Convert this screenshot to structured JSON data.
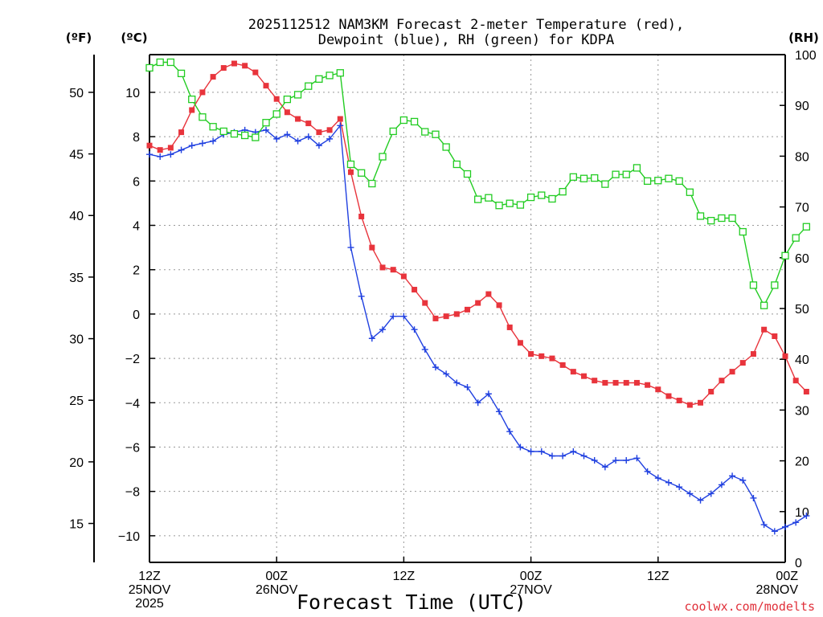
{
  "chart_data": {
    "type": "line",
    "title": [
      "2025112512 NAM3KM Forecast 2-meter Temperature (red),",
      "Dewpoint (blue), RH (green) for KDPA"
    ],
    "xlabel": "Forecast Time (UTC)",
    "credit": "coolwx.com/modelts",
    "unit_f": "(ºF)",
    "unit_c": "(ºC)",
    "unit_rh": "(RH)",
    "x_unit": "forecast hour",
    "xlim": [
      0,
      60
    ],
    "ylim_c": [
      -11.2,
      11.7
    ],
    "ylim_rh": [
      0,
      100
    ],
    "x_ticks": [
      {
        "hour": 0,
        "lines": [
          "12Z",
          "25NOV",
          "2025"
        ]
      },
      {
        "hour": 12,
        "lines": [
          "00Z",
          "26NOV"
        ]
      },
      {
        "hour": 24,
        "lines": [
          "12Z"
        ]
      },
      {
        "hour": 36,
        "lines": [
          "00Z",
          "27NOV"
        ]
      },
      {
        "hour": 48,
        "lines": [
          "12Z"
        ]
      },
      {
        "hour": 60,
        "lines": [
          "00Z",
          "28NOV"
        ]
      }
    ],
    "y_ticks_c": [
      10,
      8,
      6,
      4,
      2,
      0,
      -2,
      -4,
      -6,
      -8,
      -10
    ],
    "y_tick_labels_c": [
      "10",
      "8",
      "6",
      "4",
      "2",
      "0",
      "−2",
      "−4",
      "−6",
      "−8",
      "−10"
    ],
    "y_ticks_f": [
      50,
      45,
      40,
      35,
      30,
      25,
      20,
      15
    ],
    "y_ticks_rh": [
      100,
      90,
      80,
      70,
      60,
      50,
      40,
      30,
      20,
      10,
      0
    ],
    "colors": {
      "temperature": "#e8343c",
      "dewpoint": "#2040e0",
      "rh": "#22cc22",
      "grid": "#999999"
    },
    "series": [
      {
        "name": "Temperature",
        "axis": "c",
        "marker": "filled-square",
        "values": [
          7.6,
          7.4,
          7.5,
          8.2,
          9.2,
          10.0,
          10.7,
          11.1,
          11.3,
          11.2,
          10.9,
          10.3,
          9.7,
          9.1,
          8.8,
          8.6,
          8.2,
          8.3,
          8.8,
          6.4,
          4.4,
          3.0,
          2.1,
          2.0,
          1.7,
          1.1,
          0.5,
          -0.2,
          -0.1,
          0.0,
          0.2,
          0.5,
          0.9,
          0.4,
          -0.6,
          -1.3,
          -1.8,
          -1.9,
          -2.0,
          -2.3,
          -2.6,
          -2.8,
          -3.0,
          -3.1,
          -3.1,
          -3.1,
          -3.1,
          -3.2,
          -3.4,
          -3.7,
          -3.9,
          -4.1,
          -4.0,
          -3.5,
          -3.0,
          -2.6,
          -2.2,
          -1.8,
          -0.7,
          -1.0,
          -1.9,
          -3.0,
          -3.5
        ]
      },
      {
        "name": "Dewpoint",
        "axis": "c",
        "marker": "plus",
        "values": [
          7.2,
          7.1,
          7.2,
          7.4,
          7.6,
          7.7,
          7.8,
          8.1,
          8.2,
          8.3,
          8.2,
          8.3,
          7.9,
          8.1,
          7.8,
          8.0,
          7.6,
          7.9,
          8.5,
          3.0,
          0.8,
          -1.1,
          -0.7,
          -0.1,
          -0.1,
          -0.7,
          -1.6,
          -2.4,
          -2.7,
          -3.1,
          -3.3,
          -4.0,
          -3.6,
          -4.4,
          -5.3,
          -6.0,
          -6.2,
          -6.2,
          -6.4,
          -6.4,
          -6.2,
          -6.4,
          -6.6,
          -6.9,
          -6.6,
          -6.6,
          -6.5,
          -7.1,
          -7.4,
          -7.6,
          -7.8,
          -8.1,
          -8.4,
          -8.1,
          -7.7,
          -7.3,
          -7.5,
          -8.3,
          -9.5,
          -9.8,
          -9.6,
          -9.4,
          -9.1
        ]
      },
      {
        "name": "RH",
        "axis": "rh",
        "marker": "open-square",
        "values": [
          97.4,
          98.5,
          98.5,
          96.3,
          91.2,
          87.7,
          85.8,
          84.9,
          84.4,
          84.1,
          83.7,
          86.6,
          88.3,
          91.2,
          92.1,
          93.8,
          95.2,
          95.9,
          96.4,
          78.4,
          76.7,
          74.6,
          79.9,
          84.9,
          87.1,
          86.8,
          84.8,
          84.3,
          81.8,
          78.4,
          76.5,
          71.5,
          71.8,
          70.3,
          70.7,
          70.4,
          71.9,
          72.3,
          71.6,
          73.0,
          75.9,
          75.6,
          75.7,
          74.5,
          76.4,
          76.4,
          77.7,
          75.1,
          75.2,
          75.6,
          75.1,
          72.9,
          68.2,
          67.3,
          67.8,
          67.8,
          65.1,
          54.6,
          50.6,
          54.6,
          60.4,
          63.9,
          66.1
        ]
      }
    ]
  }
}
